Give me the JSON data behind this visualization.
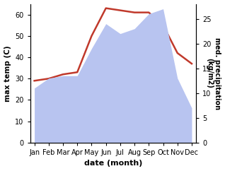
{
  "months": [
    "Jan",
    "Feb",
    "Mar",
    "Apr",
    "May",
    "Jun",
    "Jul",
    "Aug",
    "Sep",
    "Oct",
    "Nov",
    "Dec"
  ],
  "temp": [
    29,
    30,
    32,
    33,
    50,
    63,
    62,
    61,
    61,
    55,
    42,
    37
  ],
  "precip": [
    11,
    13,
    13.5,
    13.5,
    19,
    24,
    22,
    23,
    26,
    27,
    13,
    7
  ],
  "temp_color": "#c0392b",
  "precip_fill_color": "#b8c4f0",
  "left_ylabel": "max temp (C)",
  "right_ylabel": "med. precipitation\n(kg/m2)",
  "xlabel": "date (month)",
  "left_ylim": [
    0,
    65
  ],
  "right_ylim": [
    0,
    28
  ],
  "left_yticks": [
    0,
    10,
    20,
    30,
    40,
    50,
    60
  ],
  "right_yticks": [
    0,
    5,
    10,
    15,
    20,
    25
  ],
  "bg_color": "#ffffff",
  "line_width": 1.8
}
